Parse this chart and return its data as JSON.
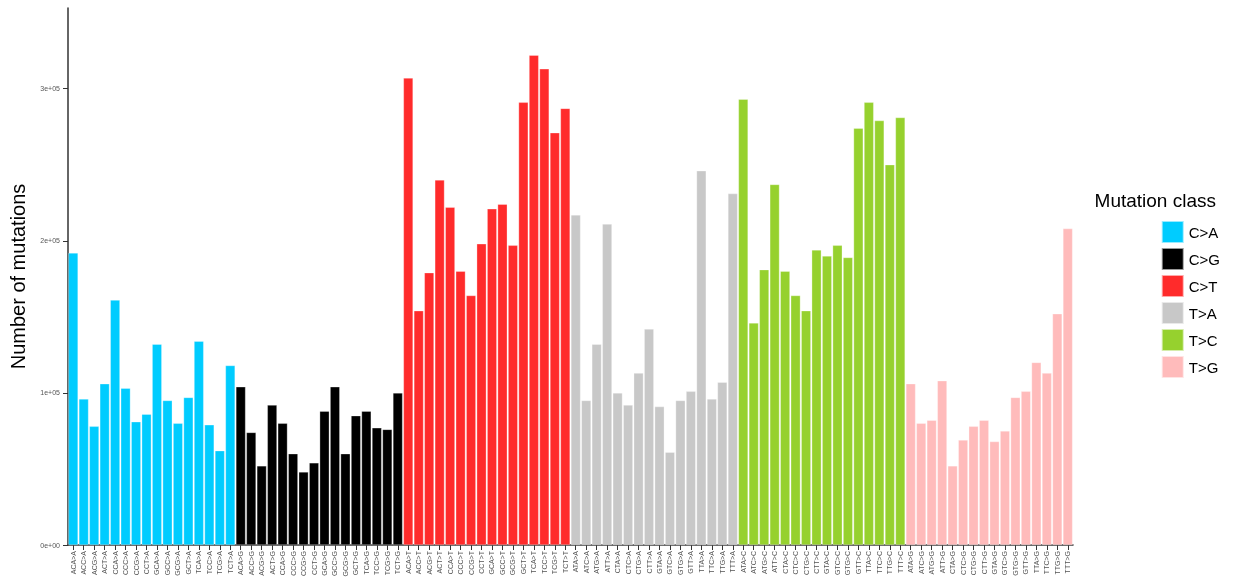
{
  "chart_data": {
    "type": "bar",
    "stacked": true,
    "ylabel": "Number of mutations",
    "legend_title": "Mutation class",
    "legend": "right",
    "grid": false,
    "categories": [
      "ACA>A",
      "ACC>A",
      "ACG>A",
      "ACT>A",
      "CCA>A",
      "CCC>A",
      "CCG>A",
      "CCT>A",
      "GCA>A",
      "GCC>A",
      "GCG>A",
      "GCT>A",
      "TCA>A",
      "TCC>A",
      "TCG>A",
      "TCT>A",
      "ACA>G",
      "ACC>G",
      "ACG>G",
      "ACT>G",
      "CCA>G",
      "CCC>G",
      "CCG>G",
      "CCT>G",
      "GCA>G",
      "GCC>G",
      "GCG>G",
      "GCT>G",
      "TCA>G",
      "TCC>G",
      "TCG>G",
      "TCT>G",
      "ACA>T",
      "ACC>T",
      "ACG>T",
      "ACT>T",
      "CCA>T",
      "CCC>T",
      "CCG>T",
      "CCT>T",
      "GCA>T",
      "GCC>T",
      "GCG>T",
      "GCT>T",
      "TCA>T",
      "TCC>T",
      "TCG>T",
      "TCT>T",
      "ATA>A",
      "ATC>A",
      "ATG>A",
      "ATT>A",
      "CTA>A",
      "CTC>A",
      "CTG>A",
      "CTT>A",
      "GTA>A",
      "GTC>A",
      "GTG>A",
      "GTT>A",
      "TTA>A",
      "TTC>A",
      "TTG>A",
      "TTT>A",
      "ATA>C",
      "ATC>C",
      "ATG>C",
      "ATT>C",
      "CTA>C",
      "CTC>C",
      "CTG>C",
      "CTT>C",
      "GTA>C",
      "GTC>C",
      "GTG>C",
      "GTT>C",
      "TTA>C",
      "TTC>C",
      "TTG>C",
      "TTT>C",
      "ATA>G",
      "ATC>G",
      "ATG>G",
      "ATT>G",
      "CTA>G",
      "CTC>G",
      "CTG>G",
      "CTT>G",
      "GTA>G",
      "GTC>G",
      "GTG>G",
      "GTT>G",
      "TTA>G",
      "TTC>G",
      "TTG>G",
      "TTT>G"
    ],
    "ylim": [
      0,
      353000
    ],
    "yticks": [
      {
        "value": 0,
        "label": "0e+00"
      },
      {
        "value": 100000,
        "label": "1e+05"
      },
      {
        "value": 200000,
        "label": "2e+05"
      },
      {
        "value": 300000,
        "label": "3e+05"
      }
    ],
    "series": [
      {
        "name": "C>A",
        "color": "#00ccff",
        "values": [
          192000,
          96000,
          78000,
          106000,
          161000,
          103000,
          81000,
          86000,
          132000,
          95000,
          80000,
          97000,
          134000,
          79000,
          62000,
          118000,
          null,
          null,
          null,
          null,
          null,
          null,
          null,
          null,
          null,
          null,
          null,
          null,
          null,
          null,
          null,
          null,
          null,
          null,
          null,
          null,
          null,
          null,
          null,
          null,
          null,
          null,
          null,
          null,
          null,
          null,
          null,
          null,
          null,
          null,
          null,
          null,
          null,
          null,
          null,
          null,
          null,
          null,
          null,
          null,
          null,
          null,
          null,
          null,
          null,
          null,
          null,
          null,
          null,
          null,
          null,
          null,
          null,
          null,
          null,
          null,
          null,
          null,
          null,
          null,
          null,
          null,
          null,
          null,
          null,
          null,
          null,
          null,
          null,
          null,
          null,
          null,
          null,
          null,
          null,
          null
        ]
      },
      {
        "name": "C>G",
        "color": "#000000",
        "values": [
          null,
          null,
          null,
          null,
          null,
          null,
          null,
          null,
          null,
          null,
          null,
          null,
          null,
          null,
          null,
          null,
          104000,
          74000,
          52000,
          92000,
          80000,
          60000,
          48000,
          54000,
          88000,
          104000,
          60000,
          85000,
          88000,
          77000,
          76000,
          100000,
          null,
          null,
          null,
          null,
          null,
          null,
          null,
          null,
          null,
          null,
          null,
          null,
          null,
          null,
          null,
          null,
          null,
          null,
          null,
          null,
          null,
          null,
          null,
          null,
          null,
          null,
          null,
          null,
          null,
          null,
          null,
          null,
          null,
          null,
          null,
          null,
          null,
          null,
          null,
          null,
          null,
          null,
          null,
          null,
          null,
          null,
          null,
          null,
          null,
          null,
          null,
          null,
          null,
          null,
          null,
          null,
          null,
          null,
          null,
          null,
          null,
          null,
          null,
          null
        ]
      },
      {
        "name": "C>T",
        "color": "#ff2b2b",
        "values": [
          null,
          null,
          null,
          null,
          null,
          null,
          null,
          null,
          null,
          null,
          null,
          null,
          null,
          null,
          null,
          null,
          null,
          null,
          null,
          null,
          null,
          null,
          null,
          null,
          null,
          null,
          null,
          null,
          null,
          null,
          null,
          null,
          307000,
          154000,
          179000,
          240000,
          222000,
          180000,
          164000,
          198000,
          221000,
          224000,
          197000,
          291000,
          322000,
          313000,
          271000,
          287000,
          null,
          null,
          null,
          null,
          null,
          null,
          null,
          null,
          null,
          null,
          null,
          null,
          null,
          null,
          null,
          null,
          null,
          null,
          null,
          null,
          null,
          null,
          null,
          null,
          null,
          null,
          null,
          null,
          null,
          null,
          null,
          null,
          null,
          null,
          null,
          null,
          null,
          null,
          null,
          null,
          null,
          null,
          null,
          null,
          null,
          null,
          null,
          null
        ]
      },
      {
        "name": "T>A",
        "color": "#c8c8c8",
        "values": [
          null,
          null,
          null,
          null,
          null,
          null,
          null,
          null,
          null,
          null,
          null,
          null,
          null,
          null,
          null,
          null,
          null,
          null,
          null,
          null,
          null,
          null,
          null,
          null,
          null,
          null,
          null,
          null,
          null,
          null,
          null,
          null,
          null,
          null,
          null,
          null,
          null,
          null,
          null,
          null,
          null,
          null,
          null,
          null,
          null,
          null,
          null,
          null,
          217000,
          95000,
          132000,
          211000,
          100000,
          92000,
          113000,
          142000,
          91000,
          61000,
          95000,
          101000,
          246000,
          96000,
          107000,
          231000,
          null,
          null,
          null,
          null,
          null,
          null,
          null,
          null,
          null,
          null,
          null,
          null,
          null,
          null,
          null,
          null,
          null,
          null,
          null,
          null,
          null,
          null,
          null,
          null,
          null,
          null,
          null,
          null,
          null,
          null,
          null,
          null
        ]
      },
      {
        "name": "T>C",
        "color": "#96d12e",
        "values": [
          null,
          null,
          null,
          null,
          null,
          null,
          null,
          null,
          null,
          null,
          null,
          null,
          null,
          null,
          null,
          null,
          null,
          null,
          null,
          null,
          null,
          null,
          null,
          null,
          null,
          null,
          null,
          null,
          null,
          null,
          null,
          null,
          null,
          null,
          null,
          null,
          null,
          null,
          null,
          null,
          null,
          null,
          null,
          null,
          null,
          null,
          null,
          null,
          null,
          null,
          null,
          null,
          null,
          null,
          null,
          null,
          null,
          null,
          null,
          null,
          null,
          null,
          null,
          null,
          293000,
          146000,
          181000,
          237000,
          180000,
          164000,
          154000,
          194000,
          190000,
          197000,
          189000,
          274000,
          291000,
          279000,
          250000,
          281000,
          null,
          null,
          null,
          null,
          null,
          null,
          null,
          null,
          null,
          null,
          null,
          null,
          null,
          null,
          null,
          null
        ]
      },
      {
        "name": "T>G",
        "color": "#ffbbbb",
        "values": [
          null,
          null,
          null,
          null,
          null,
          null,
          null,
          null,
          null,
          null,
          null,
          null,
          null,
          null,
          null,
          null,
          null,
          null,
          null,
          null,
          null,
          null,
          null,
          null,
          null,
          null,
          null,
          null,
          null,
          null,
          null,
          null,
          null,
          null,
          null,
          null,
          null,
          null,
          null,
          null,
          null,
          null,
          null,
          null,
          null,
          null,
          null,
          null,
          null,
          null,
          null,
          null,
          null,
          null,
          null,
          null,
          null,
          null,
          null,
          null,
          null,
          null,
          null,
          null,
          null,
          null,
          null,
          null,
          null,
          null,
          null,
          null,
          null,
          null,
          null,
          null,
          null,
          null,
          null,
          null,
          106000,
          80000,
          82000,
          108000,
          52000,
          69000,
          78000,
          82000,
          68000,
          75000,
          97000,
          101000,
          120000,
          113000,
          152000,
          208000
        ]
      }
    ]
  }
}
